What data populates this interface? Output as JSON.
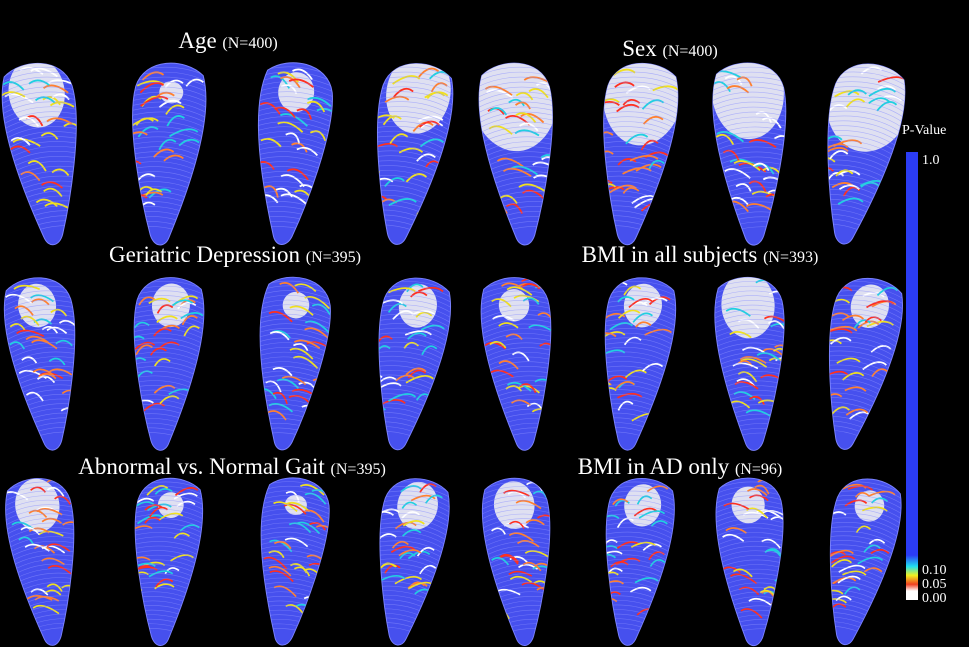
{
  "panels": [
    {
      "title": "Age",
      "n": "(N=400)"
    },
    {
      "title": "Sex",
      "n": "(N=400)"
    },
    {
      "title": "Geriatric Depression",
      "n": "(N=395)"
    },
    {
      "title": "BMI in all subjects",
      "n": "(N=393)"
    },
    {
      "title": "Abnormal vs. Normal Gait",
      "n": "(N=395)"
    },
    {
      "title": "BMI in AD only",
      "n": "(N=96)"
    }
  ],
  "colorbar": {
    "title": "P-Value",
    "labels": [
      "1.0",
      "0.10",
      "0.05",
      "0.00"
    ]
  }
}
